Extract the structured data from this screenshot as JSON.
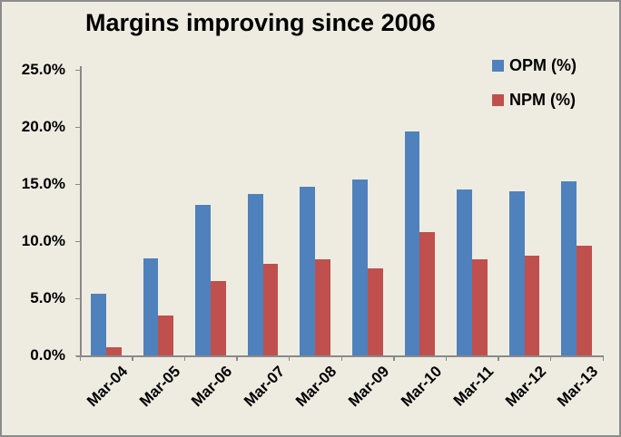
{
  "title": "Margins improving since 2006",
  "legend": {
    "entries": [
      {
        "label": "OPM (%)",
        "color": "#4F81BD"
      },
      {
        "label": "NPM (%)",
        "color": "#C0504D"
      }
    ]
  },
  "colors": {
    "background": "#EEECE1",
    "border": "#8C8C8C",
    "axis": "#898989",
    "opm": "#4F81BD",
    "npm": "#C0504D",
    "text": "#000000"
  },
  "chart_data": {
    "type": "bar",
    "title": "Margins improving since 2006",
    "categories": [
      "Mar-04",
      "Mar-05",
      "Mar-06",
      "Mar-07",
      "Mar-08",
      "Mar-09",
      "Mar-10",
      "Mar-11",
      "Mar-12",
      "Mar-13"
    ],
    "series": [
      {
        "name": "OPM (%)",
        "color": "#4F81BD",
        "values": [
          5.4,
          8.5,
          13.2,
          14.1,
          14.8,
          15.4,
          19.6,
          14.5,
          14.4,
          15.2
        ]
      },
      {
        "name": "NPM (%)",
        "color": "#C0504D",
        "values": [
          0.7,
          3.5,
          6.5,
          8.0,
          8.4,
          7.6,
          10.8,
          8.4,
          8.7,
          9.6
        ]
      }
    ],
    "xlabel": "",
    "ylabel": "",
    "ylim": [
      0,
      25
    ],
    "ytick_step": 5,
    "ytick_labels": [
      "0.0%",
      "5.0%",
      "10.0%",
      "15.0%",
      "20.0%",
      "25.0%"
    ],
    "grid": false,
    "legend_position": "top-right"
  }
}
